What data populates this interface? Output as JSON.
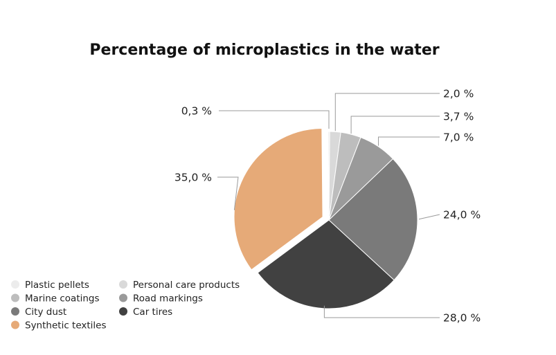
{
  "chart_data": {
    "type": "pie",
    "title": "Percentage of microplastics in the water",
    "unit": "%",
    "exploded": "Synthetic textiles",
    "slices": [
      {
        "name": "Plastic pellets",
        "value": 0.3,
        "label": "0,3 %",
        "color": "#ececec"
      },
      {
        "name": "Personal care products",
        "value": 2.0,
        "label": "2,0 %",
        "color": "#d9d9d9"
      },
      {
        "name": "Marine coatings",
        "value": 3.7,
        "label": "3,7 %",
        "color": "#bdbdbd"
      },
      {
        "name": "Road markings",
        "value": 7.0,
        "label": "7,0 %",
        "color": "#9a9a9a"
      },
      {
        "name": "City dust",
        "value": 24.0,
        "label": "24,0 %",
        "color": "#7a7a7a"
      },
      {
        "name": "Car tires",
        "value": 28.0,
        "label": "28,0 %",
        "color": "#414141"
      },
      {
        "name": "Synthetic textiles",
        "value": 35.0,
        "label": "35,0 %",
        "color": "#e6aa78"
      }
    ],
    "legend": [
      [
        "Plastic pellets",
        "Personal care products"
      ],
      [
        "Marine coatings",
        "Road markings"
      ],
      [
        "City dust",
        "Car tires"
      ],
      [
        "Synthetic textiles"
      ]
    ],
    "legend_position": "bottom-left"
  }
}
